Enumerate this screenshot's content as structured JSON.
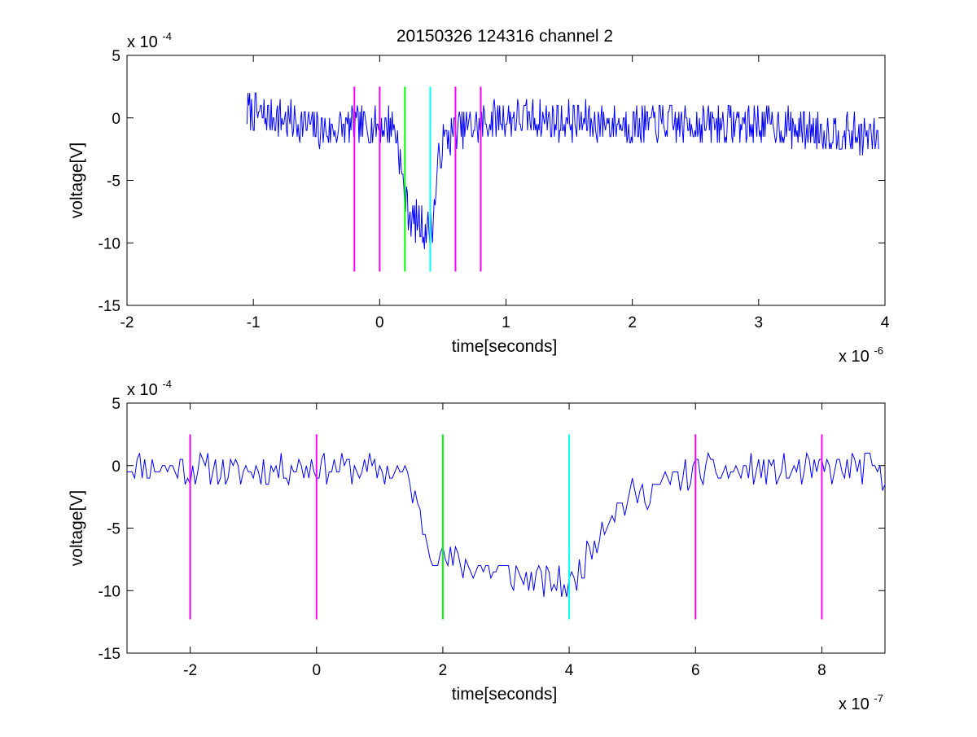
{
  "title": "20150326 124316 channel 2",
  "colors": {
    "signal": "#0000ff",
    "magenta": "#ff00ff",
    "green": "#00ff00",
    "cyan": "#00ffff",
    "axes": "#000000"
  },
  "chart_data": [
    {
      "type": "line",
      "title": "20150326 124316 channel 2",
      "xlabel": "time[seconds]",
      "ylabel": "voltage[V]",
      "x_multiplier_label": "x 10",
      "x_multiplier_exp": "-6",
      "y_multiplier_label": "x 10",
      "y_multiplier_exp": "-4",
      "xlim": [
        -2e-06,
        4e-06
      ],
      "ylim": [
        -15,
        5
      ],
      "x_ticks": [
        -2,
        -1,
        0,
        1,
        2,
        3,
        4
      ],
      "x_tick_labels": [
        "-2",
        "-1",
        "0",
        "1",
        "2",
        "3",
        "4"
      ],
      "y_ticks": [
        5,
        0,
        -5,
        -10,
        -15
      ],
      "y_tick_labels": [
        "5",
        "0",
        "-5",
        "-10",
        "-15"
      ],
      "grid": false,
      "series": [
        {
          "color": "#0000ff",
          "x_range": [
            -1.05e-06,
            3.95e-06
          ],
          "baseline": [
            [
              -1.05e-06,
              0.5
            ],
            [
              -6e-07,
              -0.5
            ],
            [
              -4.5e-07,
              -1.0
            ],
            [
              1e-07,
              -0.5
            ],
            [
              1.4e-07,
              -1.5
            ],
            [
              2e-07,
              -6.5
            ],
            [
              2.5e-07,
              -8.0
            ],
            [
              3.8e-07,
              -9.0
            ],
            [
              4.2e-07,
              -8.5
            ],
            [
              4.6e-07,
              -4.0
            ],
            [
              5e-07,
              -2.0
            ],
            [
              6e-07,
              -1.0
            ],
            [
              1e-06,
              0.0
            ],
            [
              2e-06,
              -0.5
            ],
            [
              3e-06,
              -0.5
            ],
            [
              3.95e-06,
              -1.5
            ]
          ],
          "noise_amplitude": 1.6,
          "seed": 7
        }
      ],
      "markers": [
        {
          "x": -2e-07,
          "color": "#ff00ff"
        },
        {
          "x": 0,
          "color": "#ff00ff"
        },
        {
          "x": 2e-07,
          "color": "#00ff00"
        },
        {
          "x": 4e-07,
          "color": "#00ffff"
        },
        {
          "x": 6e-07,
          "color": "#ff00ff"
        },
        {
          "x": 8e-07,
          "color": "#ff00ff"
        }
      ],
      "marker_range": [
        2.5,
        -12.3
      ]
    },
    {
      "type": "line",
      "xlabel": "time[seconds]",
      "ylabel": "voltage[V]",
      "x_multiplier_label": "x 10",
      "x_multiplier_exp": "-7",
      "y_multiplier_label": "x 10",
      "y_multiplier_exp": "-4",
      "xlim": [
        -3e-07,
        9e-07
      ],
      "ylim": [
        -15,
        5
      ],
      "x_ticks": [
        -2,
        0,
        2,
        4,
        6,
        8
      ],
      "x_tick_labels": [
        "-2",
        "0",
        "2",
        "4",
        "6",
        "8"
      ],
      "y_ticks": [
        5,
        0,
        -5,
        -10,
        -15
      ],
      "y_tick_labels": [
        "5",
        "0",
        "-5",
        "-10",
        "-15"
      ],
      "grid": false,
      "series": [
        {
          "color": "#0000ff",
          "x_range": [
            -3e-07,
            9e-07
          ],
          "baseline": [
            [
              -3e-07,
              0.0
            ],
            [
              -1.2e-07,
              -0.5
            ],
            [
              0.0,
              0.0
            ],
            [
              1.3e-07,
              -0.5
            ],
            [
              1.45e-07,
              -1.0
            ],
            [
              1.6e-07,
              -3.5
            ],
            [
              1.8e-07,
              -6.5
            ],
            [
              2e-07,
              -7.5
            ],
            [
              2.4e-07,
              -8.0
            ],
            [
              3e-07,
              -8.5
            ],
            [
              3.6e-07,
              -9.5
            ],
            [
              4.05e-07,
              -9.5
            ],
            [
              4.2e-07,
              -8.0
            ],
            [
              4.4e-07,
              -6.0
            ],
            [
              4.6e-07,
              -4.0
            ],
            [
              5e-07,
              -2.5
            ],
            [
              5.5e-07,
              -1.5
            ],
            [
              6e-07,
              -0.5
            ],
            [
              7e-07,
              -0.5
            ],
            [
              8e-07,
              -0.5
            ],
            [
              8.8e-07,
              0.0
            ],
            [
              9e-07,
              -1.8
            ]
          ],
          "noise_amplitude": 1.3,
          "seed": 11
        }
      ],
      "markers": [
        {
          "x": -2e-07,
          "color": "#ff00ff"
        },
        {
          "x": 0,
          "color": "#ff00ff"
        },
        {
          "x": 2e-07,
          "color": "#00ff00"
        },
        {
          "x": 4e-07,
          "color": "#00ffff"
        },
        {
          "x": 6e-07,
          "color": "#ff00ff"
        },
        {
          "x": 8e-07,
          "color": "#ff00ff"
        }
      ],
      "marker_range": [
        2.5,
        -12.3
      ]
    }
  ]
}
